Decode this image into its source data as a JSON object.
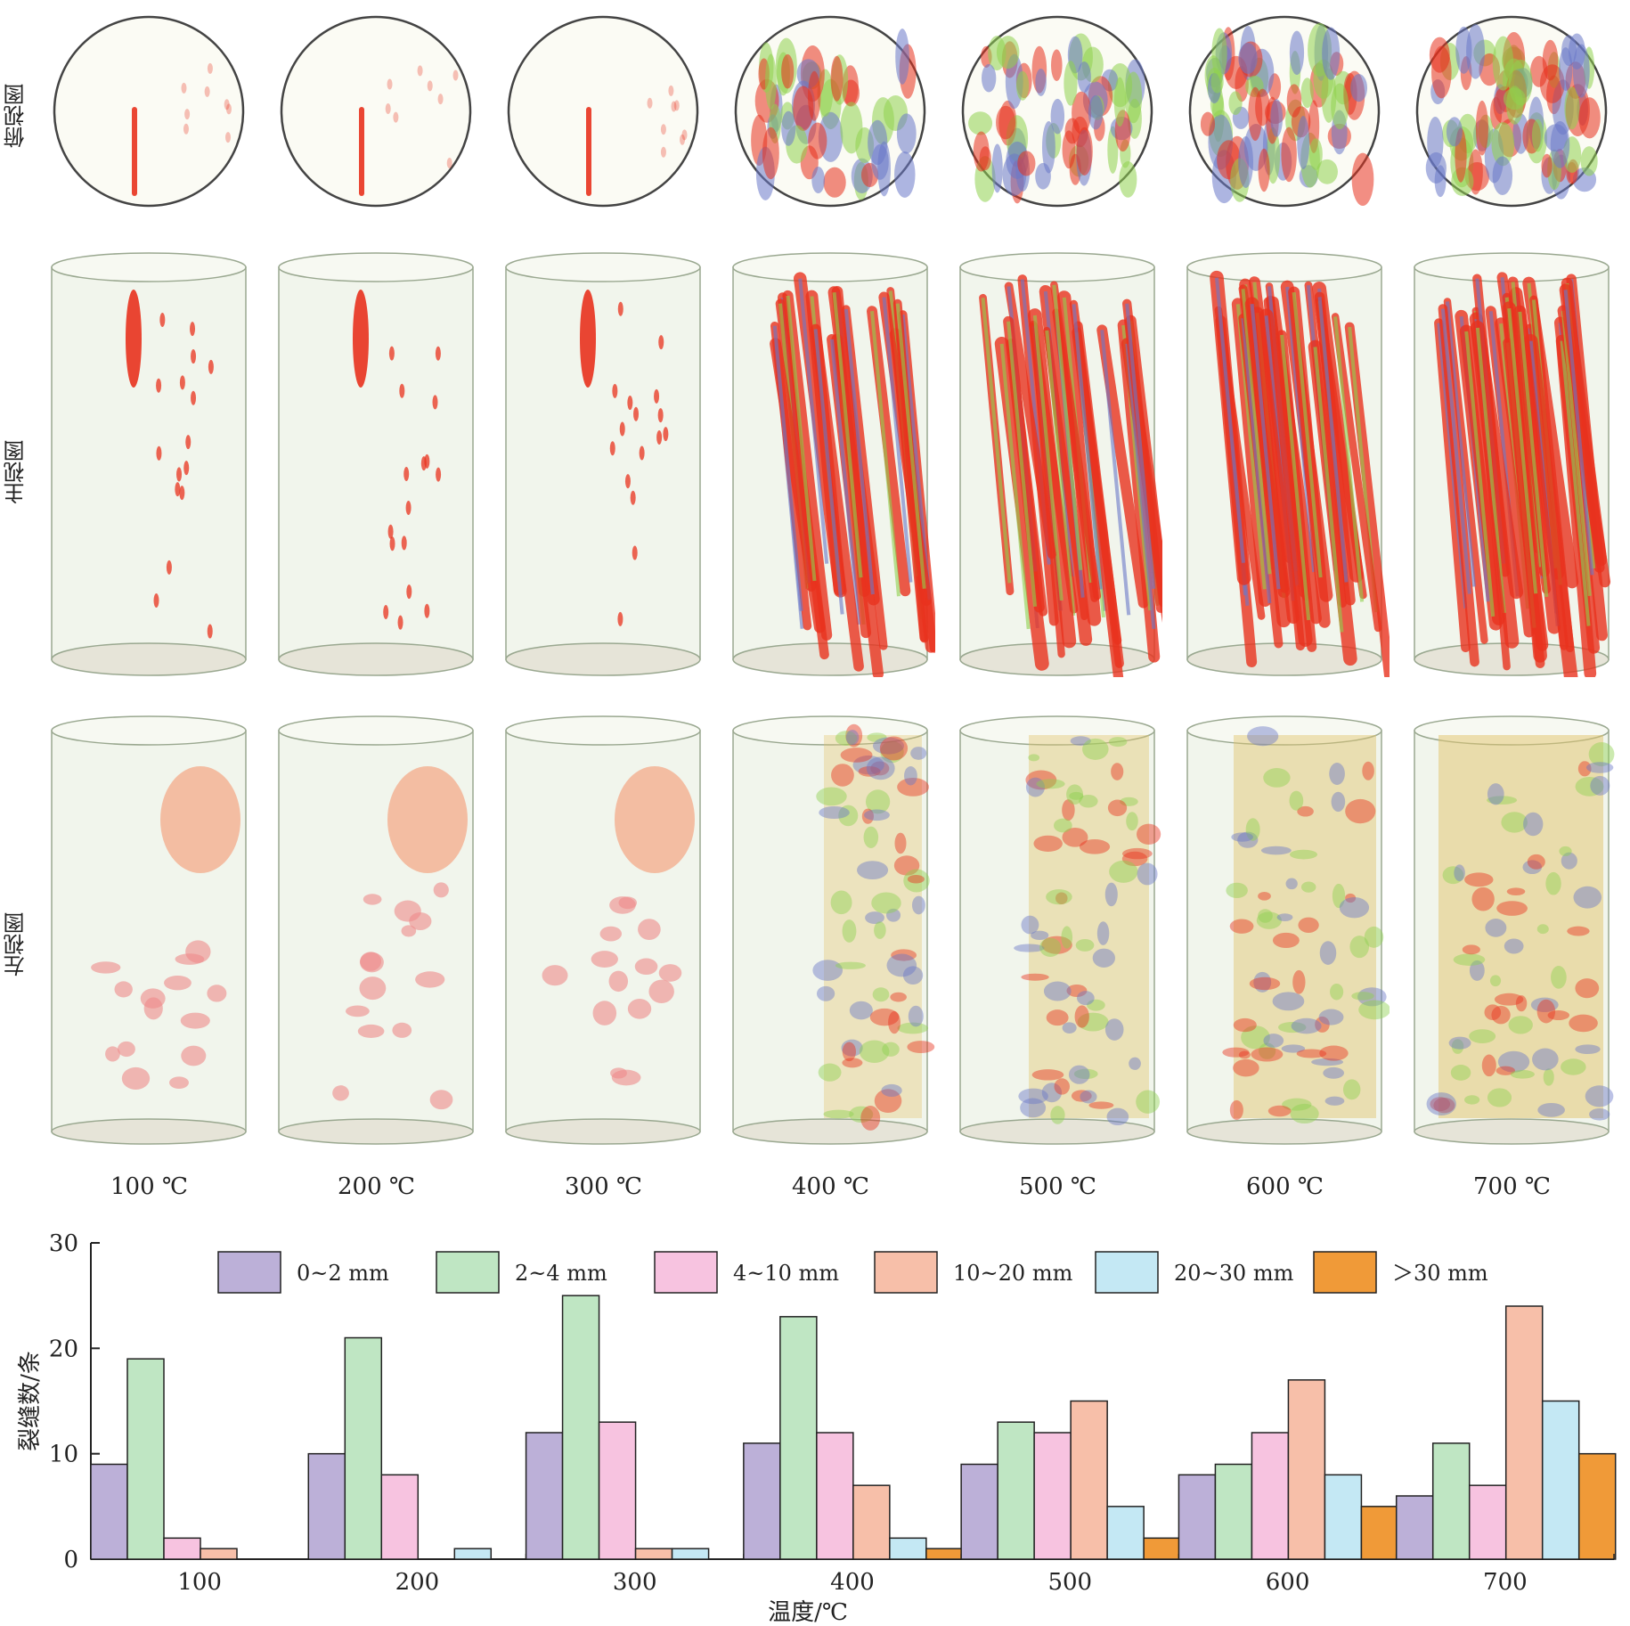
{
  "views": {
    "top": "俯视图",
    "front": "主视图",
    "left": "左视图"
  },
  "temperatures": [
    "100 ℃",
    "200 ℃",
    "300 ℃",
    "400 ℃",
    "500 ℃",
    "600 ℃",
    "700 ℃"
  ],
  "colors": {
    "crack_red": "#e8321e",
    "crack_green": "#8fd14f",
    "crack_blue": "#6a78c8",
    "shell": "#dfe8d8"
  },
  "chart_data": {
    "type": "bar",
    "categories": [
      "100",
      "200",
      "300",
      "400",
      "500",
      "600",
      "700"
    ],
    "xlabel": "温度/℃",
    "ylabel": "裂缝数/条",
    "ylim": [
      0,
      30
    ],
    "yticks": [
      0,
      10,
      20,
      30
    ],
    "legend_position": "top",
    "series": [
      {
        "name": "0~2 mm",
        "color": "#bcb0d8",
        "values": [
          9,
          10,
          12,
          11,
          9,
          8,
          6
        ]
      },
      {
        "name": "2~4 mm",
        "color": "#bfe6c3",
        "values": [
          19,
          21,
          25,
          23,
          13,
          9,
          11
        ]
      },
      {
        "name": "4~10 mm",
        "color": "#f7c3e0",
        "values": [
          2,
          8,
          13,
          12,
          12,
          12,
          7
        ]
      },
      {
        "name": "10~20 mm",
        "color": "#f7bfa9",
        "values": [
          1,
          0,
          1,
          7,
          15,
          17,
          24
        ]
      },
      {
        "name": "20~30 mm",
        "color": "#c4e8f4",
        "values": [
          0,
          1,
          1,
          2,
          5,
          8,
          15
        ]
      },
      {
        "name": "＞30 mm",
        "color": "#f09a38",
        "values": [
          0,
          0,
          0,
          1,
          2,
          5,
          10
        ]
      }
    ]
  }
}
